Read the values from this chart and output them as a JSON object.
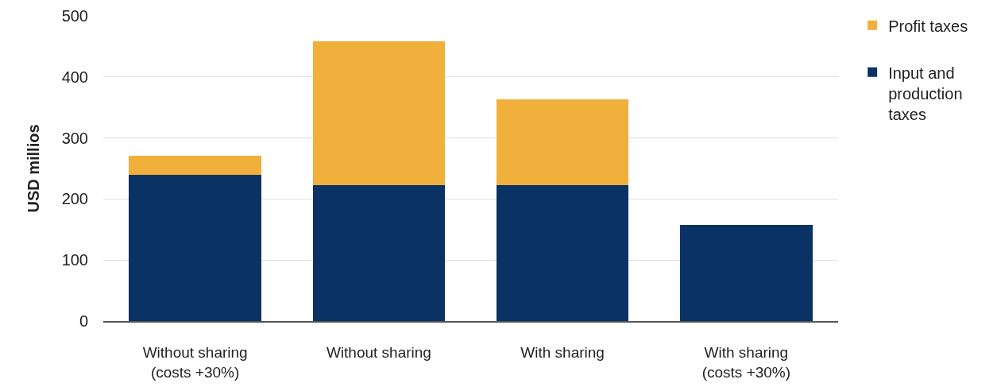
{
  "chart_data": {
    "type": "bar",
    "stacked": true,
    "ylabel": "USD millios",
    "categories": [
      "Without sharing (costs +30%)",
      "Without sharing",
      "With sharing",
      "With sharing (costs +30%)"
    ],
    "series": [
      {
        "name": "Input and production taxes",
        "color": "#0b3264",
        "values": [
          240,
          223,
          223,
          158
        ]
      },
      {
        "name": "Profit taxes",
        "color": "#f0b03b",
        "values": [
          31,
          235,
          140,
          0
        ]
      }
    ],
    "ylim": [
      0,
      500
    ],
    "yticks": [
      0,
      100,
      200,
      300,
      400,
      500
    ],
    "grid": "y",
    "legend": "top right"
  }
}
